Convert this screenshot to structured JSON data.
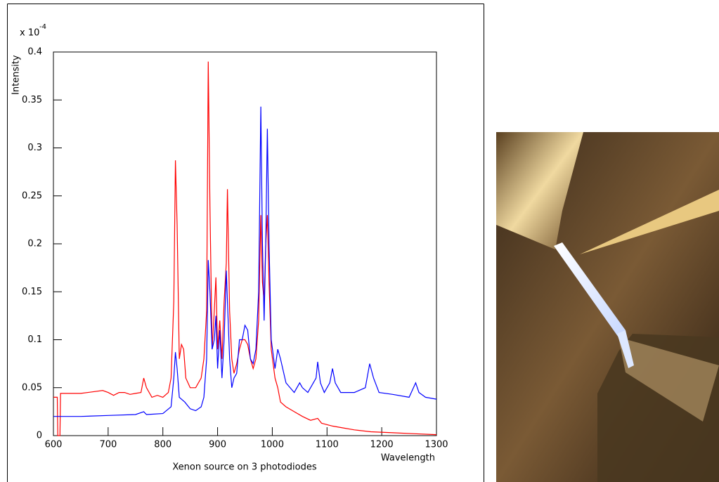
{
  "chart_data": {
    "type": "line",
    "x_label": "Wavelength",
    "y_label": "Intensity",
    "caption": "Xenon source on 3 photodiodes",
    "y_multiplier": "x 10",
    "y_multiplier_exponent": "-4",
    "xlim": [
      600,
      1300
    ],
    "xticks": [
      600,
      700,
      800,
      900,
      1000,
      1100,
      1200,
      1300
    ],
    "ylim": [
      0,
      0.4
    ],
    "yticks": [
      0,
      0.05,
      0.1,
      0.15,
      0.2,
      0.25,
      0.3,
      0.35,
      0.4
    ],
    "series": [
      {
        "color": "#ff0000",
        "x": [
          600,
          607,
          608,
          612,
          613,
          650,
          690,
          700,
          710,
          720,
          730,
          740,
          750,
          760,
          765,
          770,
          780,
          790,
          800,
          810,
          815,
          820,
          823,
          826,
          830,
          834,
          838,
          842,
          850,
          860,
          870,
          875,
          880,
          883,
          886,
          890,
          894,
          897,
          900,
          904,
          908,
          912,
          916,
          918,
          922,
          926,
          930,
          935,
          940,
          945,
          950,
          955,
          960,
          965,
          970,
          975,
          979,
          982,
          985,
          988,
          991,
          994,
          998,
          1005,
          1010,
          1015,
          1025,
          1040,
          1055,
          1070,
          1083,
          1090,
          1110,
          1130,
          1150,
          1180,
          1220,
          1260,
          1300
        ],
        "values": [
          0.04,
          0.04,
          0,
          0,
          0.044,
          0.044,
          0.047,
          0.045,
          0.042,
          0.045,
          0.045,
          0.043,
          0.044,
          0.045,
          0.06,
          0.05,
          0.04,
          0.042,
          0.04,
          0.045,
          0.06,
          0.14,
          0.287,
          0.22,
          0.08,
          0.095,
          0.09,
          0.06,
          0.05,
          0.05,
          0.06,
          0.08,
          0.13,
          0.39,
          0.24,
          0.09,
          0.13,
          0.165,
          0.09,
          0.12,
          0.08,
          0.14,
          0.18,
          0.257,
          0.13,
          0.08,
          0.065,
          0.075,
          0.09,
          0.1,
          0.1,
          0.095,
          0.08,
          0.07,
          0.08,
          0.12,
          0.23,
          0.16,
          0.14,
          0.2,
          0.23,
          0.16,
          0.09,
          0.06,
          0.05,
          0.035,
          0.03,
          0.025,
          0.02,
          0.016,
          0.018,
          0.013,
          0.01,
          0.008,
          0.006,
          0.004,
          0.003,
          0.002,
          0.001
        ]
      },
      {
        "color": "#0000ff",
        "x": [
          600,
          650,
          700,
          750,
          765,
          770,
          800,
          815,
          820,
          823,
          826,
          830,
          840,
          850,
          860,
          870,
          875,
          880,
          883,
          886,
          890,
          894,
          897,
          900,
          904,
          908,
          912,
          916,
          918,
          922,
          926,
          930,
          935,
          940,
          945,
          950,
          955,
          960,
          965,
          970,
          975,
          979,
          982,
          985,
          988,
          991,
          994,
          998,
          1005,
          1010,
          1015,
          1025,
          1040,
          1050,
          1055,
          1065,
          1080,
          1083,
          1088,
          1095,
          1105,
          1110,
          1115,
          1125,
          1150,
          1170,
          1178,
          1185,
          1195,
          1220,
          1250,
          1258,
          1262,
          1268,
          1280,
          1300
        ],
        "values": [
          0.02,
          0.02,
          0.021,
          0.022,
          0.025,
          0.022,
          0.023,
          0.03,
          0.06,
          0.087,
          0.07,
          0.04,
          0.035,
          0.028,
          0.026,
          0.03,
          0.04,
          0.08,
          0.183,
          0.15,
          0.09,
          0.1,
          0.125,
          0.07,
          0.11,
          0.06,
          0.1,
          0.172,
          0.14,
          0.08,
          0.05,
          0.06,
          0.065,
          0.1,
          0.1,
          0.115,
          0.11,
          0.08,
          0.075,
          0.09,
          0.15,
          0.343,
          0.2,
          0.12,
          0.2,
          0.32,
          0.2,
          0.1,
          0.07,
          0.09,
          0.08,
          0.055,
          0.045,
          0.055,
          0.05,
          0.045,
          0.06,
          0.077,
          0.055,
          0.045,
          0.055,
          0.07,
          0.055,
          0.045,
          0.045,
          0.05,
          0.075,
          0.06,
          0.045,
          0.043,
          0.04,
          0.05,
          0.055,
          0.045,
          0.04,
          0.038
        ]
      }
    ]
  }
}
